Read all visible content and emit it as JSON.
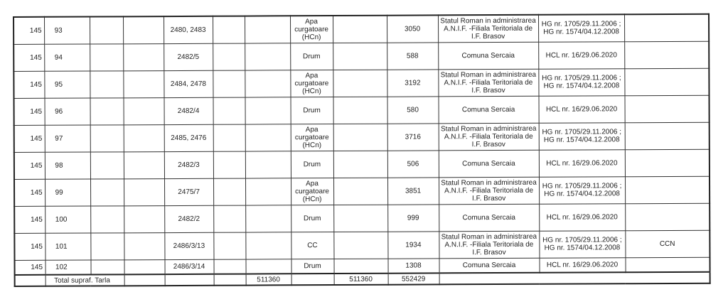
{
  "rows": [
    {
      "tarla": "145",
      "parcela": "93",
      "nr_cad": "2480, 2483",
      "categorie": "Apa curgatoare (HCn)",
      "suprafata": "3050",
      "proprietar": "Statul Roman in administrarea A.N.I.F. -Filiala Teritoriala de I.F. Brasov",
      "act": "HG nr. 1705/29.11.2006 ; HG nr. 1574/04.12.2008",
      "obs": ""
    },
    {
      "tarla": "145",
      "parcela": "94",
      "nr_cad": "2482/5",
      "categorie": "Drum",
      "suprafata": "588",
      "proprietar": "Comuna Sercaia",
      "act": "HCL nr. 16/29.06.2020",
      "obs": ""
    },
    {
      "tarla": "145",
      "parcela": "95",
      "nr_cad": "2484, 2478",
      "categorie": "Apa curgatoare (HCn)",
      "suprafata": "3192",
      "proprietar": "Statul Roman in administrarea A.N.I.F. -Filiala Teritoriala de I.F. Brasov",
      "act": "HG nr. 1705/29.11.2006 ; HG nr. 1574/04.12.2008",
      "obs": ""
    },
    {
      "tarla": "145",
      "parcela": "96",
      "nr_cad": "2482/4",
      "categorie": "Drum",
      "suprafata": "580",
      "proprietar": "Comuna Sercaia",
      "act": "HCL nr. 16/29.06.2020",
      "obs": ""
    },
    {
      "tarla": "145",
      "parcela": "97",
      "nr_cad": "2485, 2476",
      "categorie": "Apa curgatoare (HCn)",
      "suprafata": "3716",
      "proprietar": "Statul Roman in administrarea A.N.I.F. -Filiala Teritoriala de I.F. Brasov",
      "act": "HG nr. 1705/29.11.2006 ; HG nr. 1574/04.12.2008",
      "obs": ""
    },
    {
      "tarla": "145",
      "parcela": "98",
      "nr_cad": "2482/3",
      "categorie": "Drum",
      "suprafata": "506",
      "proprietar": "Comuna Sercaia",
      "act": "HCL nr. 16/29.06.2020",
      "obs": ""
    },
    {
      "tarla": "145",
      "parcela": "99",
      "nr_cad": "2475/7",
      "categorie": "Apa curgatoare (HCn)",
      "suprafata": "3851",
      "proprietar": "Statul Roman in administrarea A.N.I.F. -Filiala Teritoriala de I.F. Brasov",
      "act": "HG nr. 1705/29.11.2006 ; HG nr. 1574/04.12.2008",
      "obs": ""
    },
    {
      "tarla": "145",
      "parcela": "100",
      "nr_cad": "2482/2",
      "categorie": "Drum",
      "suprafata": "999",
      "proprietar": "Comuna Sercaia",
      "act": "HCL nr. 16/29.06.2020",
      "obs": ""
    },
    {
      "tarla": "145",
      "parcela": "101",
      "nr_cad": "2486/3/13",
      "categorie": "CC",
      "suprafata": "1934",
      "proprietar": "Statul Roman in administrarea A.N.I.F. -Filiala Teritoriala de I.F. Brasov",
      "act": "HG nr. 1705/29.11.2006 ; HG nr. 1574/04.12.2008",
      "obs": "CCN"
    },
    {
      "tarla": "145",
      "parcela": "102",
      "nr_cad": "2486/3/14",
      "categorie": "Drum",
      "suprafata": "1308",
      "proprietar": "Comuna Sercaia",
      "act": "HCL nr. 16/29.06.2020",
      "obs": ""
    }
  ],
  "total": {
    "label": "Total supraf. Tarla",
    "col7": "511360",
    "col9": "511360",
    "col10": "552429"
  }
}
